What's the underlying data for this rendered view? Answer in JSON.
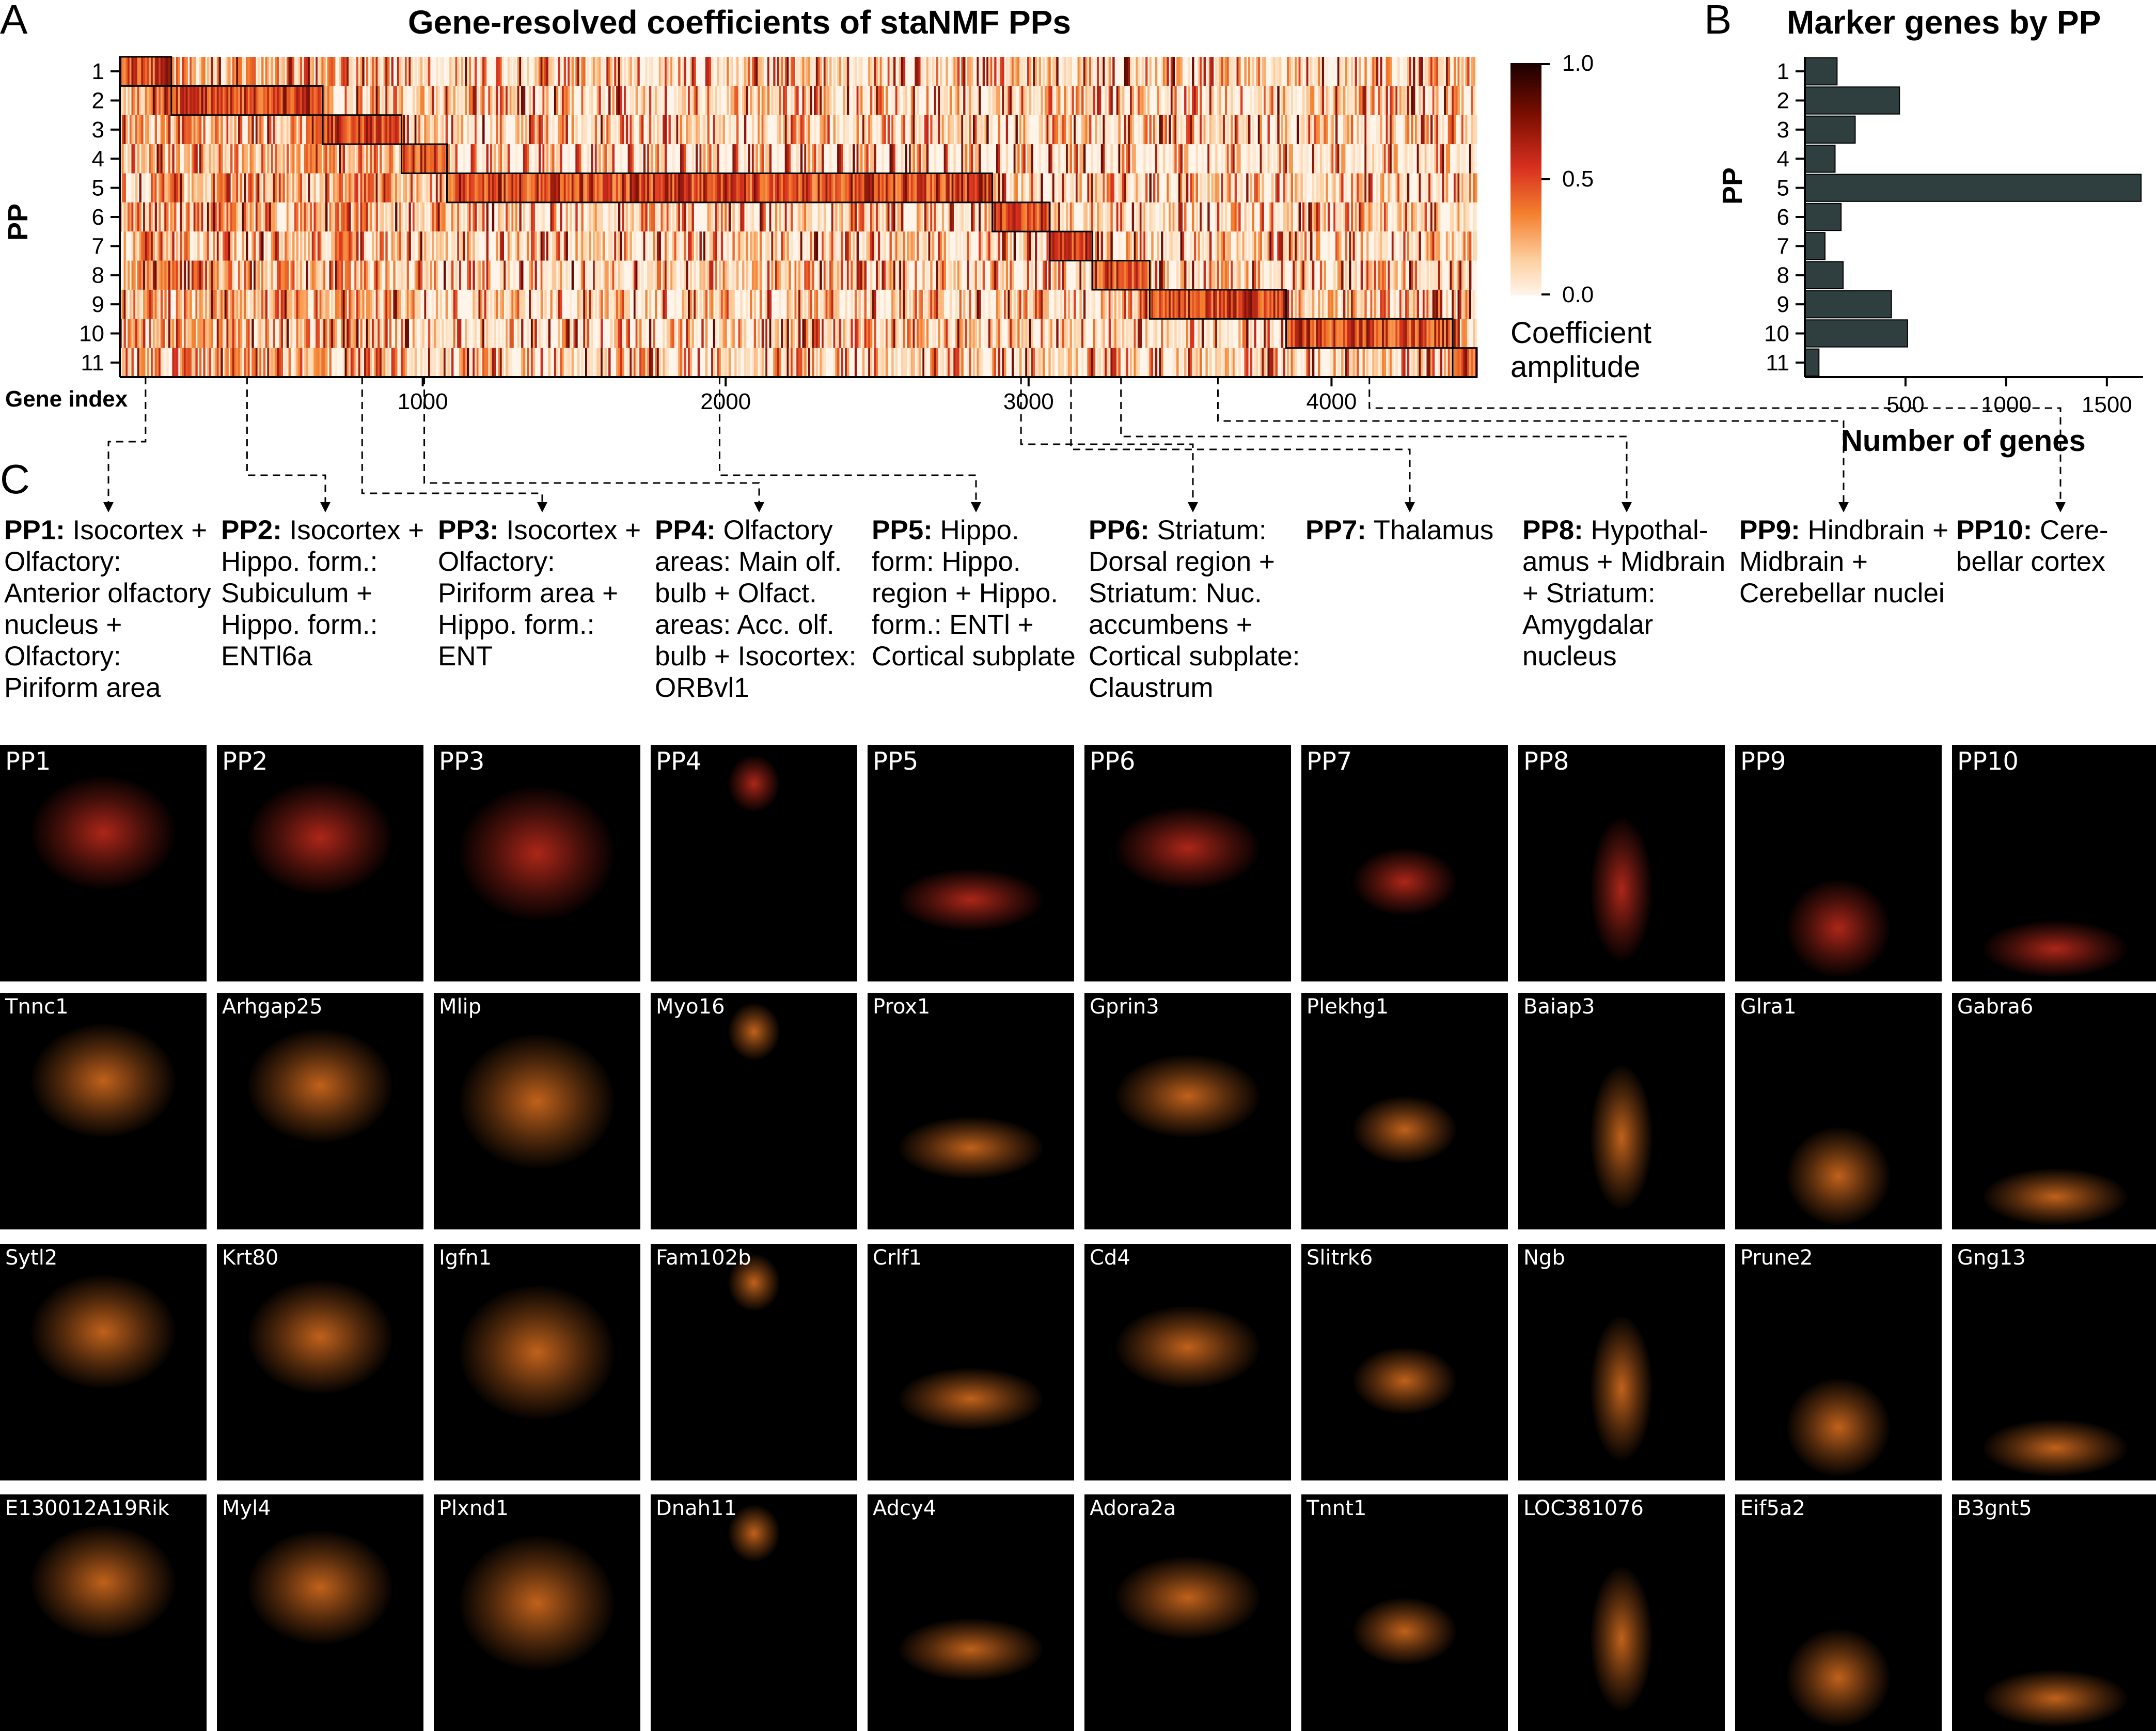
{
  "panel_a": {
    "letter": "A",
    "title": "Gene-resolved coefficients of staNMF PPs",
    "ylabel": "PP",
    "xlabel": "Gene index",
    "colorbar_label_1": "Coefficient",
    "colorbar_label_2": "amplitude",
    "colorbar_ticks": [
      "1.0",
      "0.5",
      "0.0"
    ],
    "colors": {
      "low": "#fff5eb",
      "mid": "#e8501c",
      "high": "#1a0000"
    }
  },
  "panel_b": {
    "letter": "B",
    "title": "Marker genes by PP",
    "ylabel": "PP",
    "xlabel": "Number of genes",
    "bar_color": "#2f3e3e"
  },
  "panel_c": {
    "letter": "C",
    "descriptions": [
      {
        "pp": "PP1:",
        "text": "Isocortex + Olfactory: Anterior olfactory nucleus + Olfactory: Piriform area"
      },
      {
        "pp": "PP2:",
        "text": "Isocortex + Hippo. form.: Subiculum + Hippo. form.: ENTl6a"
      },
      {
        "pp": "PP3:",
        "text": "Isocortex + Olfactory: Piriform area + Hippo. form.: ENT"
      },
      {
        "pp": "PP4:",
        "text": "Olfactory areas: Main olf. bulb + Olfact. areas: Acc. olf. bulb + Isocortex: ORBvl1"
      },
      {
        "pp": "PP5:",
        "text": "Hippo. form: Hippo. region + Hippo. form.: ENTl + Cortical subplate"
      },
      {
        "pp": "PP6:",
        "text": "Striatum: Dorsal region + Striatum: Nuc. accumbens + Cortical subplate: Claustrum"
      },
      {
        "pp": "PP7:",
        "text": "Thalamus"
      },
      {
        "pp": "PP8:",
        "text": "Hypothal- amus + Midbrain + Striatum: Amygdalar nucleus"
      },
      {
        "pp": "PP9:",
        "text": "Hindbrain + Midbrain + Cerebellar nuclei"
      },
      {
        "pp": "PP10:",
        "text": "Cere- bellar cortex"
      }
    ],
    "image_rows": [
      [
        "PP1",
        "PP2",
        "PP3",
        "PP4",
        "PP5",
        "PP6",
        "PP7",
        "PP8",
        "PP9",
        "PP10"
      ],
      [
        "Tnnc1",
        "Arhgap25",
        "Mlip",
        "Myo16",
        "Prox1",
        "Gprin3",
        "Plekhg1",
        "Baiap3",
        "Glra1",
        "Gabra6"
      ],
      [
        "Sytl2",
        "Krt80",
        "Igfn1",
        "Fam102b",
        "Crlf1",
        "Cd4",
        "Slitrk6",
        "Ngb",
        "Prune2",
        "Gng13"
      ],
      [
        "E130012A19Rik",
        "Myl4",
        "Plxnd1",
        "Dnah11",
        "Adcy4",
        "Adora2a",
        "Tnnt1",
        "LOC381076",
        "Eif5a2",
        "B3gnt5"
      ]
    ],
    "row_colors": [
      "#d7301f",
      "#f07a22",
      "#f07a22",
      "#f07a22"
    ]
  },
  "chart_data": [
    {
      "type": "heatmap",
      "title": "Gene-resolved coefficients of staNMF PPs",
      "xlabel": "Gene index",
      "ylabel": "PP",
      "rows": [
        "1",
        "2",
        "3",
        "4",
        "5",
        "6",
        "7",
        "8",
        "9",
        "10",
        "11"
      ],
      "xticks": [
        1000,
        2000,
        3000,
        4000
      ],
      "xlim": [
        0,
        4400
      ],
      "color_range": [
        0.0,
        1.0
      ],
      "colorbar_label": "Coefficient amplitude",
      "block_gene_ranges": [
        {
          "pp": "1",
          "start": 0,
          "end": 170
        },
        {
          "pp": "2",
          "start": 170,
          "end": 670
        },
        {
          "pp": "3",
          "start": 670,
          "end": 930
        },
        {
          "pp": "4",
          "start": 930,
          "end": 1080
        },
        {
          "pp": "5",
          "start": 1080,
          "end": 2880
        },
        {
          "pp": "6",
          "start": 2880,
          "end": 3070
        },
        {
          "pp": "7",
          "start": 3070,
          "end": 3210
        },
        {
          "pp": "8",
          "start": 3210,
          "end": 3400
        },
        {
          "pp": "9",
          "start": 3400,
          "end": 3850
        },
        {
          "pp": "10",
          "start": 3850,
          "end": 4400
        },
        {
          "pp": "11",
          "start": 4400,
          "end": 4480
        }
      ]
    },
    {
      "type": "bar",
      "orientation": "horizontal",
      "title": "Marker genes by PP",
      "xlabel": "Number of genes",
      "ylabel": "PP",
      "categories": [
        "1",
        "2",
        "3",
        "4",
        "5",
        "6",
        "7",
        "8",
        "9",
        "10",
        "11"
      ],
      "values": [
        160,
        470,
        250,
        150,
        1670,
        180,
        100,
        190,
        430,
        510,
        70
      ],
      "xticks": [
        500,
        1000,
        1500
      ],
      "xlim": [
        0,
        1680
      ]
    }
  ]
}
